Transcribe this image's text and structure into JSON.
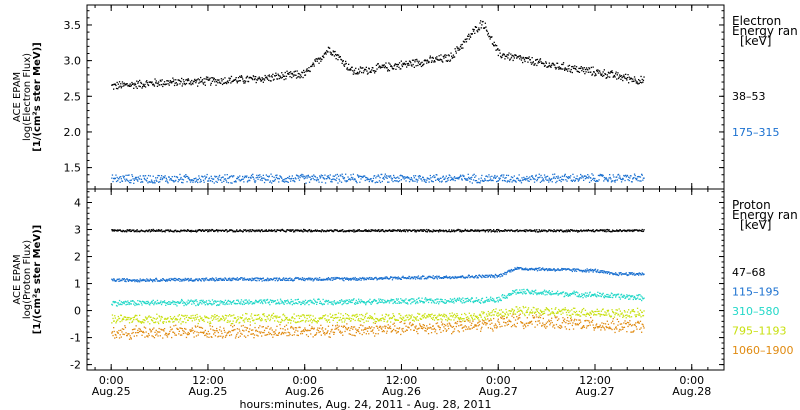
{
  "colors": {
    "black": "#000000",
    "blue": "#1a70d0",
    "cyan": "#22d8c8",
    "yellow": "#c8e010",
    "orange": "#e08a10"
  },
  "chart_data": [
    {
      "type": "scatter",
      "panel": "electron",
      "ylabel": [
        "ACE EPAM",
        "log(Electron Flux)",
        "[1/(cm²s ster MeV)]"
      ],
      "yticks": [
        "1.5",
        "2.0",
        "2.5",
        "3.0",
        "3.5"
      ],
      "ylim": [
        1.2,
        3.78
      ],
      "legend_title": [
        "Electron",
        "Energy ran",
        "[keV]"
      ],
      "series": [
        {
          "name": "38–53",
          "color": "black",
          "x": [
            0,
            6,
            12,
            18,
            24,
            27,
            30,
            36,
            42,
            46,
            48,
            54,
            60,
            66
          ],
          "y": [
            2.65,
            2.7,
            2.72,
            2.75,
            2.82,
            3.18,
            2.85,
            2.95,
            3.05,
            3.55,
            3.1,
            2.95,
            2.85,
            2.72
          ],
          "noise": 0.035
        },
        {
          "name": "175–315",
          "color": "blue",
          "x": [
            0,
            66
          ],
          "y": [
            1.35,
            1.36
          ],
          "noise": 0.035
        }
      ]
    },
    {
      "type": "scatter",
      "panel": "proton",
      "ylabel": [
        "ACE EPAM",
        "log(Proton Flux)",
        "[1/(cm²s ster MeV)]"
      ],
      "yticks": [
        "-2",
        "-1",
        "0",
        "1",
        "2",
        "3",
        "4"
      ],
      "ylim": [
        -2.2,
        4.5
      ],
      "legend_title": [
        "Proton",
        "Energy ran",
        "[keV]"
      ],
      "series": [
        {
          "name": "47–68",
          "color": "black",
          "x": [
            0,
            66
          ],
          "y": [
            2.98,
            2.98
          ],
          "noise": 0.025
        },
        {
          "name": "115–195",
          "color": "blue",
          "x": [
            0,
            30,
            45,
            48,
            50,
            60,
            62,
            66
          ],
          "y": [
            1.15,
            1.2,
            1.28,
            1.3,
            1.58,
            1.5,
            1.38,
            1.38
          ],
          "noise": 0.035
        },
        {
          "name": "310–580",
          "color": "cyan",
          "x": [
            0,
            30,
            45,
            48,
            50,
            60,
            66
          ],
          "y": [
            0.3,
            0.35,
            0.4,
            0.45,
            0.72,
            0.6,
            0.5
          ],
          "noise": 0.06
        },
        {
          "name": "795–1193",
          "color": "yellow",
          "x": [
            0,
            30,
            45,
            50,
            60,
            66
          ],
          "y": [
            -0.3,
            -0.25,
            -0.2,
            0.0,
            -0.05,
            -0.1
          ],
          "noise": 0.1
        },
        {
          "name": "1060–1900",
          "color": "orange",
          "x": [
            0,
            30,
            45,
            50,
            60,
            66
          ],
          "y": [
            -0.8,
            -0.7,
            -0.55,
            -0.35,
            -0.5,
            -0.6
          ],
          "noise": 0.14
        }
      ]
    }
  ],
  "xaxis": {
    "ticks": [
      {
        "time": "0:00",
        "date": "Aug.25",
        "x": 0
      },
      {
        "time": "12:00",
        "date": "Aug.25",
        "x": 12
      },
      {
        "time": "0:00",
        "date": "Aug.26",
        "x": 24
      },
      {
        "time": "12:00",
        "date": "Aug.26",
        "x": 36
      },
      {
        "time": "0:00",
        "date": "Aug.27",
        "x": 48
      },
      {
        "time": "12:00",
        "date": "Aug.27",
        "x": 60
      },
      {
        "time": "0:00",
        "date": "Aug.28",
        "x": 72
      }
    ],
    "xlim": [
      -3,
      76
    ],
    "label": "hours:minutes, Aug. 24, 2011 - Aug. 28, 2011"
  }
}
